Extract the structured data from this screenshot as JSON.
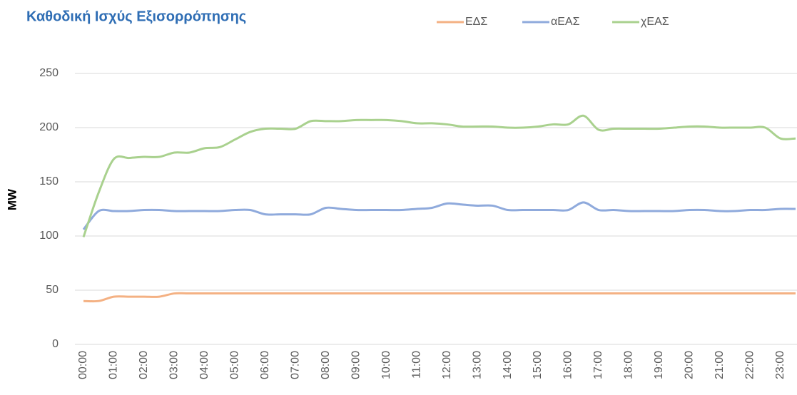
{
  "chart_data": {
    "type": "line",
    "title": "Καθοδική Ισχύς Εξισορρόπησης",
    "y_label": "MW",
    "categories": [
      "00:00",
      null,
      "01:00",
      null,
      "02:00",
      null,
      "03:00",
      null,
      "04:00",
      null,
      "05:00",
      null,
      "06:00",
      null,
      "07:00",
      null,
      "08:00",
      null,
      "09:00",
      null,
      "10:00",
      null,
      "11:00",
      null,
      "12:00",
      null,
      "13:00",
      null,
      "14:00",
      null,
      "15:00",
      null,
      "16:00",
      null,
      "17:00",
      null,
      "18:00",
      null,
      "19:00",
      null,
      "20:00",
      null,
      "21:00",
      null,
      "22:00",
      null,
      "23:00",
      null
    ],
    "series": [
      {
        "name": "ΕΔΣ",
        "color": "#f4b183",
        "values": [
          40,
          40,
          44,
          44,
          44,
          44,
          47,
          47,
          47,
          47,
          47,
          47,
          47,
          47,
          47,
          47,
          47,
          47,
          47,
          47,
          47,
          47,
          47,
          47,
          47,
          47,
          47,
          47,
          47,
          47,
          47,
          47,
          47,
          47,
          47,
          47,
          47,
          47,
          47,
          47,
          47,
          47,
          47,
          47,
          47,
          47,
          47,
          47
        ]
      },
      {
        "name": "αΕΑΣ",
        "color": "#8faadc",
        "values": [
          106,
          123,
          123,
          123,
          124,
          124,
          123,
          123,
          123,
          123,
          124,
          124,
          120,
          120,
          120,
          120,
          126,
          125,
          124,
          124,
          124,
          124,
          125,
          126,
          130,
          129,
          128,
          128,
          124,
          124,
          124,
          124,
          124,
          131,
          124,
          124,
          123,
          123,
          123,
          123,
          124,
          124,
          123,
          123,
          124,
          124,
          125,
          125
        ]
      },
      {
        "name": "χΕΑΣ",
        "color": "#a9d18e",
        "values": [
          99,
          140,
          171,
          172,
          173,
          173,
          177,
          177,
          181,
          182,
          189,
          196,
          199,
          199,
          199,
          206,
          206,
          206,
          207,
          207,
          207,
          206,
          204,
          204,
          203,
          201,
          201,
          201,
          200,
          200,
          201,
          203,
          203,
          211,
          198,
          199,
          199,
          199,
          199,
          200,
          201,
          201,
          200,
          200,
          200,
          200,
          190,
          190
        ]
      }
    ],
    "ylim": [
      0,
      250
    ],
    "yticks": [
      0,
      50,
      100,
      150,
      200,
      250
    ],
    "grid": true,
    "legend": "top"
  }
}
